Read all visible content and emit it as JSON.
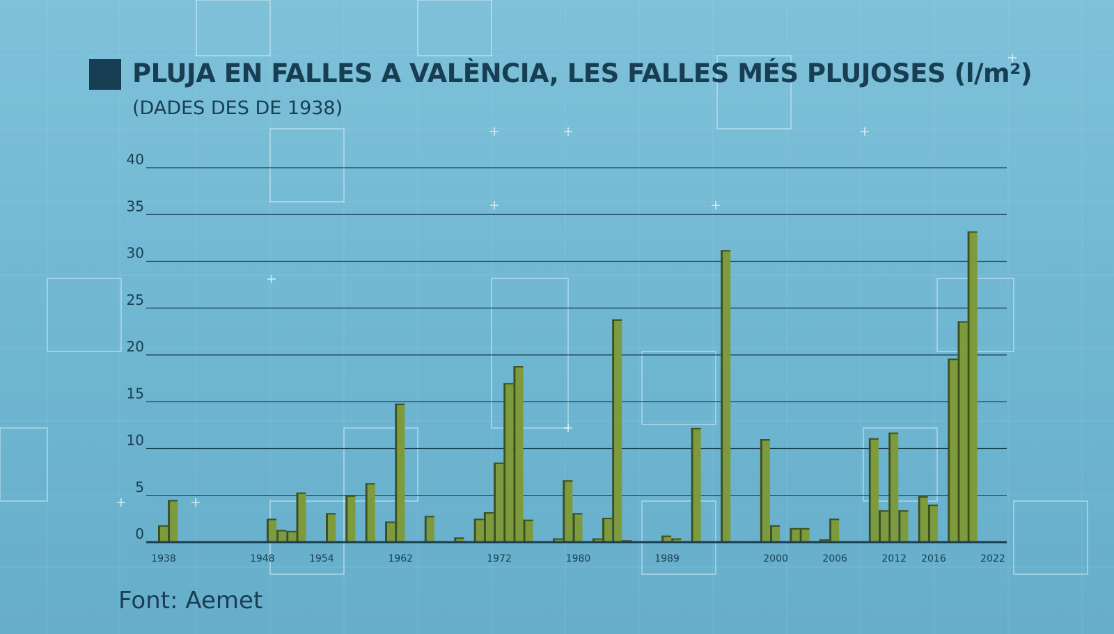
{
  "title": "PLUJA EN FALLES A VALÈNCIA, LES FALLES MÉS PLUJOSES (l/m²)",
  "subtitle": "(DADES DES DE 1938)",
  "source": "Font: Aemet",
  "colors": {
    "background": "#7fc1d9",
    "text": "#173e53",
    "bar": "#7d9a3c",
    "bar_shadow": "#3d4f1f",
    "gridline": "#173e53"
  },
  "chart_data": {
    "type": "bar",
    "title": "PLUJA EN FALLES A VALÈNCIA, LES FALLES MÉS PLUJOSES (l/m²)",
    "xlabel": "",
    "ylabel": "",
    "ylim": [
      0,
      40
    ],
    "yticks": [
      0,
      5,
      10,
      15,
      20,
      25,
      30,
      35,
      40
    ],
    "xticks": [
      1938,
      1948,
      1954,
      1962,
      1972,
      1980,
      1989,
      2000,
      2006,
      2012,
      2016,
      2022
    ],
    "grid": true,
    "x": [
      1938,
      1939,
      1949,
      1950,
      1951,
      1952,
      1955,
      1957,
      1959,
      1961,
      1962,
      1965,
      1968,
      1970,
      1971,
      1972,
      1973,
      1974,
      1975,
      1978,
      1979,
      1980,
      1982,
      1983,
      1984,
      1985,
      1989,
      1990,
      1992,
      1995,
      1999,
      2000,
      2002,
      2003,
      2005,
      2006,
      2010,
      2011,
      2012,
      2013,
      2015,
      2016,
      2018,
      2019,
      2020,
      2021,
      2022
    ],
    "values": [
      1.8,
      4.5,
      2.5,
      1.3,
      1.2,
      5.3,
      3.1,
      5.0,
      6.3,
      2.2,
      14.8,
      2.8,
      0.5,
      2.5,
      3.2,
      8.5,
      17.0,
      18.8,
      2.4,
      0.4,
      6.6,
      3.1,
      0.4,
      2.6,
      23.8,
      0.2,
      0.7,
      0.4,
      12.2,
      31.2,
      11.0,
      1.8,
      1.5,
      1.5,
      0.3,
      2.5,
      11.1,
      3.4,
      11.7,
      3.4,
      4.9,
      4.0,
      19.6,
      23.6,
      33.2,
      0.0,
      0.0
    ],
    "values_note": ""
  }
}
